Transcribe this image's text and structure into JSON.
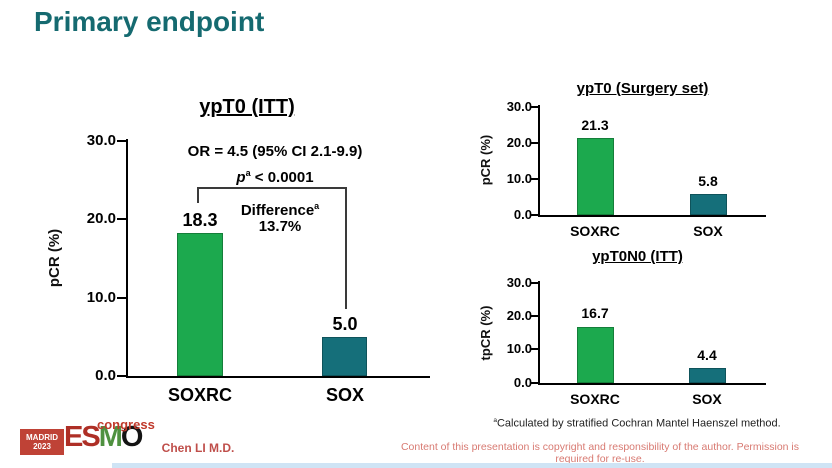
{
  "slide": {
    "title": "Primary endpoint",
    "presenter": "Chen LI M.D.",
    "copyright": "Content of this presentation is copyright and responsibility of the author. Permission is required for re-use."
  },
  "footnote": {
    "sup": "a",
    "text": "Calculated by stratified Cochran Mantel Haenszel method."
  },
  "logo": {
    "city": "MADRID",
    "year": "2023",
    "e": "E",
    "s": "S",
    "m": "M",
    "o": "O",
    "event": "congress"
  },
  "colors": {
    "title_teal": "#156a70",
    "soxrc_green": "#1CA94E",
    "sox_teal": "#156F7A",
    "accent_red": "#bf4e4a",
    "copyright_red": "#d87a72"
  },
  "chart_data": [
    {
      "type": "bar",
      "title": "ypT0 (ITT)",
      "ylabel": "pCR (%)",
      "ylim": [
        0,
        30
      ],
      "yticks": [
        "30.0",
        "20.0",
        "10.0",
        "0.0"
      ],
      "categories": [
        "SOXRC",
        "SOX"
      ],
      "values": [
        18.3,
        5.0
      ],
      "value_labels": [
        "18.3",
        "5.0"
      ],
      "bar_colors": [
        "#1CA94E",
        "#156F7A"
      ],
      "annotations": {
        "or_line": "OR = 4.5 (95% CI 2.1-9.9)",
        "p_var": "p",
        "p_sup": "a",
        "p_rest": " < 0.0001",
        "diff_label": "Difference",
        "diff_sup": "a",
        "diff_value": "13.7%"
      }
    },
    {
      "type": "bar",
      "title": "ypT0 (Surgery set)",
      "ylabel": "pCR (%)",
      "ylim": [
        0,
        30
      ],
      "yticks": [
        "30.0",
        "20.0",
        "10.0",
        "0.0"
      ],
      "categories": [
        "SOXRC",
        "SOX"
      ],
      "values": [
        21.3,
        5.8
      ],
      "value_labels": [
        "21.3",
        "5.8"
      ],
      "bar_colors": [
        "#1CA94E",
        "#156F7A"
      ]
    },
    {
      "type": "bar",
      "title": "ypT0N0 (ITT)",
      "ylabel": "tpCR (%)",
      "ylim": [
        0,
        30
      ],
      "yticks": [
        "30.0",
        "20.0",
        "10.0",
        "0.0"
      ],
      "categories": [
        "SOXRC",
        "SOX"
      ],
      "values": [
        16.7,
        4.4
      ],
      "value_labels": [
        "16.7",
        "4.4"
      ],
      "bar_colors": [
        "#1CA94E",
        "#156F7A"
      ]
    }
  ]
}
